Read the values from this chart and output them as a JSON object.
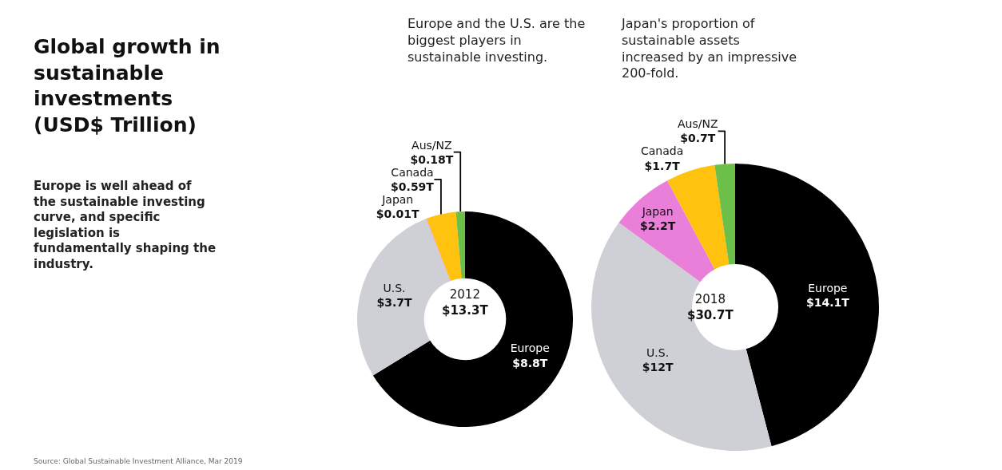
{
  "chart_data": [
    {
      "type": "other",
      "title": "Global growth in sustainable investments (USD$ Trillion)",
      "subtitle": "Europe is well ahead of the sustainable investing curve, and specific legislation is fundamentally shaping the industry.",
      "annotations": [
        "Source: Global Sustainable Investment Alliance, Mar 2019"
      ]
    },
    {
      "type": "donut",
      "title": "2012",
      "subtitle": "$13.3T",
      "annotations": [
        "Europe and the U.S. are the biggest players in sustainable investing."
      ],
      "categories": [
        "Europe",
        "U.S.",
        "Japan",
        "Canada",
        "Aus/NZ"
      ],
      "values": [
        8.8,
        3.7,
        0.01,
        0.59,
        0.18
      ],
      "value_labels": [
        "$8.8T",
        "$3.7T",
        "$0.01T",
        "$0.59T",
        "$0.18T"
      ],
      "colors": [
        "#000000",
        "#cfcfd6",
        "#e97fd8",
        "#ffc20e",
        "#6cc04a"
      ]
    },
    {
      "type": "donut",
      "title": "2018",
      "subtitle": "$30.7T",
      "annotations": [
        "Japan's proportion of sustainable assets increased by an impressive 200-fold."
      ],
      "categories": [
        "Europe",
        "U.S.",
        "Japan",
        "Canada",
        "Aus/NZ"
      ],
      "values": [
        14.1,
        12,
        2.2,
        1.7,
        0.7
      ],
      "value_labels": [
        "$14.1T",
        "$12T",
        "$2.2T",
        "$1.7T",
        "$0.7T"
      ],
      "colors": [
        "#000000",
        "#cfcfd6",
        "#e97fd8",
        "#ffc20e",
        "#6cc04a"
      ]
    }
  ]
}
